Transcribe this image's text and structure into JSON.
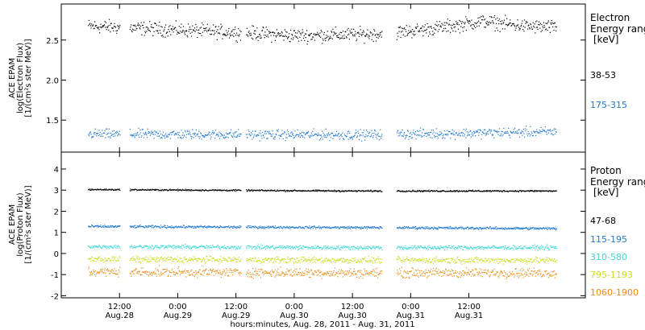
{
  "chart_data": [
    {
      "type": "scatter",
      "ylabel_lines": [
        "ACE EPAM",
        "log(Electron Flux)",
        "[1/(cm²s ster MeV)]"
      ],
      "ylim": [
        1.1,
        2.95
      ],
      "yticks": [
        1.5,
        2.0,
        2.5
      ],
      "ytick_labels": [
        "1.5",
        "2.0",
        "2.5"
      ],
      "side_title_lines": [
        "Electron",
        "Energy ranges",
        "[keV]"
      ],
      "series": [
        {
          "name": "38-53",
          "color": "#000000",
          "mean": 2.62,
          "noise": 0.07,
          "trend": [
            [
              5.5,
              2.68
            ],
            [
              36,
              2.6
            ],
            [
              48,
              2.56
            ],
            [
              66,
              2.58
            ],
            [
              78,
              2.66
            ],
            [
              87,
              2.74
            ],
            [
              95,
              2.68
            ],
            [
              102,
              2.66
            ]
          ]
        },
        {
          "name": "175-315",
          "color": "#1E78D2",
          "mean": 1.33,
          "noise": 0.05,
          "trend": [
            [
              5.5,
              1.33
            ],
            [
              60,
              1.32
            ],
            [
              102,
              1.36
            ]
          ]
        }
      ]
    },
    {
      "type": "scatter",
      "ylabel_lines": [
        "ACE EPAM",
        "log(Proton Flux)",
        "[1/(cm²s ster MeV)]"
      ],
      "ylim": [
        -2.1,
        4.8
      ],
      "yticks": [
        -2,
        -1,
        0,
        1,
        2,
        3,
        4
      ],
      "ytick_labels": [
        "-2",
        "-1",
        "0",
        "1",
        "2",
        "3",
        "4"
      ],
      "side_title_lines": [
        "Proton",
        "Energy ranges",
        "[keV]"
      ],
      "series": [
        {
          "name": "47-68",
          "color": "#000000",
          "mean": 2.98,
          "noise": 0.03,
          "trend": [
            [
              5.5,
              3.05
            ],
            [
              60,
              2.98
            ],
            [
              102,
              2.98
            ]
          ]
        },
        {
          "name": "115-195",
          "color": "#1E78D2",
          "mean": 1.25,
          "noise": 0.05,
          "trend": [
            [
              5.5,
              1.3
            ],
            [
              60,
              1.25
            ],
            [
              102,
              1.2
            ]
          ]
        },
        {
          "name": "310-580",
          "color": "#3CD7D7",
          "mean": 0.3,
          "noise": 0.08,
          "trend": [
            [
              5.5,
              0.35
            ],
            [
              60,
              0.3
            ],
            [
              102,
              0.3
            ]
          ]
        },
        {
          "name": "795-1193",
          "color": "#C8DC1E",
          "mean": -0.3,
          "noise": 0.12,
          "trend": [
            [
              5.5,
              -0.25
            ],
            [
              60,
              -0.3
            ],
            [
              102,
              -0.3
            ]
          ]
        },
        {
          "name": "1060-1900",
          "color": "#EB8C14",
          "mean": -0.9,
          "noise": 0.18,
          "trend": [
            [
              5.5,
              -0.85
            ],
            [
              60,
              -0.9
            ],
            [
              102,
              -0.9
            ]
          ]
        }
      ]
    }
  ],
  "x_axis": {
    "xlim_hours": [
      0,
      108
    ],
    "data_gaps_hours": [
      [
        12,
        14
      ],
      [
        37,
        38
      ],
      [
        66,
        69
      ]
    ],
    "ticks": [
      {
        "hour": 12,
        "time": "12:00",
        "date": "Aug.28"
      },
      {
        "hour": 24,
        "time": "0:00",
        "date": "Aug.29"
      },
      {
        "hour": 36,
        "time": "12:00",
        "date": "Aug.29"
      },
      {
        "hour": 48,
        "time": "0:00",
        "date": "Aug.30"
      },
      {
        "hour": 60,
        "time": "12:00",
        "date": "Aug.30"
      },
      {
        "hour": 72,
        "time": "0:00",
        "date": "Aug.31"
      },
      {
        "hour": 84,
        "time": "12:00",
        "date": "Aug.31"
      }
    ],
    "xlabel": "hours:minutes, Aug. 28, 2011 - Aug. 31, 2011"
  }
}
